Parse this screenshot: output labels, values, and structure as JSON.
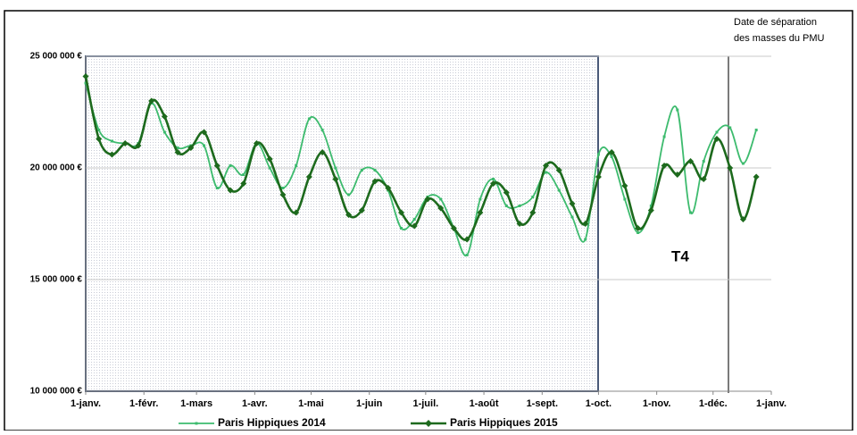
{
  "chart_data": {
    "type": "line",
    "annotations": {
      "separation": [
        "Date de séparation",
        "des masses du PMU"
      ],
      "quarter": "T4"
    },
    "x": [
      0,
      7,
      14,
      21,
      28,
      35,
      42,
      49,
      56,
      63,
      70,
      77,
      84,
      91,
      98,
      105,
      112,
      119,
      126,
      133,
      140,
      147,
      154,
      161,
      168,
      175,
      182,
      189,
      196,
      203,
      210,
      217,
      224,
      231,
      238,
      245,
      252,
      259,
      266,
      273,
      280,
      287,
      294,
      301,
      308,
      315,
      322,
      329,
      336,
      343,
      350,
      357
    ],
    "series": [
      {
        "name": "Paris Hippiques 2014",
        "color": "#3dbb6e",
        "values": [
          23800000,
          21700000,
          21200000,
          21100000,
          21100000,
          22900000,
          21600000,
          20900000,
          21000000,
          21000000,
          19100000,
          20100000,
          19700000,
          21100000,
          20000000,
          19100000,
          20100000,
          22200000,
          21700000,
          20000000,
          18800000,
          19900000,
          19900000,
          19000000,
          17300000,
          17700000,
          18700000,
          18600000,
          17300000,
          16100000,
          18600000,
          19500000,
          18300000,
          18300000,
          18700000,
          19800000,
          19000000,
          17800000,
          16800000,
          20600000,
          20500000,
          18600000,
          17100000,
          18300000,
          21400000,
          22600000,
          18000000,
          20300000,
          21600000,
          21800000,
          20200000,
          21700000
        ]
      },
      {
        "name": "Paris Hippiques 2015",
        "color": "#1d6a1d",
        "values": [
          24100000,
          21300000,
          20600000,
          21100000,
          21000000,
          23000000,
          22300000,
          20700000,
          20900000,
          21600000,
          20100000,
          19000000,
          19300000,
          21100000,
          20400000,
          18800000,
          18000000,
          19600000,
          20700000,
          19500000,
          17900000,
          18100000,
          19400000,
          19100000,
          18000000,
          17400000,
          18600000,
          18200000,
          17300000,
          16800000,
          18000000,
          19300000,
          18900000,
          17500000,
          18000000,
          20100000,
          19900000,
          18400000,
          17500000,
          19600000,
          20700000,
          19200000,
          17300000,
          18100000,
          20100000,
          19700000,
          20300000,
          19500000,
          21300000,
          20000000,
          17700000,
          19600000
        ]
      }
    ],
    "xlim": [
      0,
      365
    ],
    "xticks": [
      {
        "value": 0,
        "label": "1-janv."
      },
      {
        "value": 31,
        "label": "1-févr."
      },
      {
        "value": 59,
        "label": "1-mars"
      },
      {
        "value": 90,
        "label": "1-avr."
      },
      {
        "value": 120,
        "label": "1-mai"
      },
      {
        "value": 151,
        "label": "1-juin"
      },
      {
        "value": 181,
        "label": "1-juil."
      },
      {
        "value": 212,
        "label": "1-août"
      },
      {
        "value": 243,
        "label": "1-sept."
      },
      {
        "value": 273,
        "label": "1-oct."
      },
      {
        "value": 304,
        "label": "1-nov."
      },
      {
        "value": 334,
        "label": "1-déc."
      },
      {
        "value": 365,
        "label": "1-janv."
      }
    ],
    "ylim": [
      10000000,
      25000000
    ],
    "yticks": [
      {
        "value": 10000000,
        "label": "10 000 000 €"
      },
      {
        "value": 15000000,
        "label": "15 000 000 €"
      },
      {
        "value": 20000000,
        "label": "20 000 000 €"
      },
      {
        "value": 25000000,
        "label": "25 000 000 €"
      }
    ],
    "grid": true
  }
}
